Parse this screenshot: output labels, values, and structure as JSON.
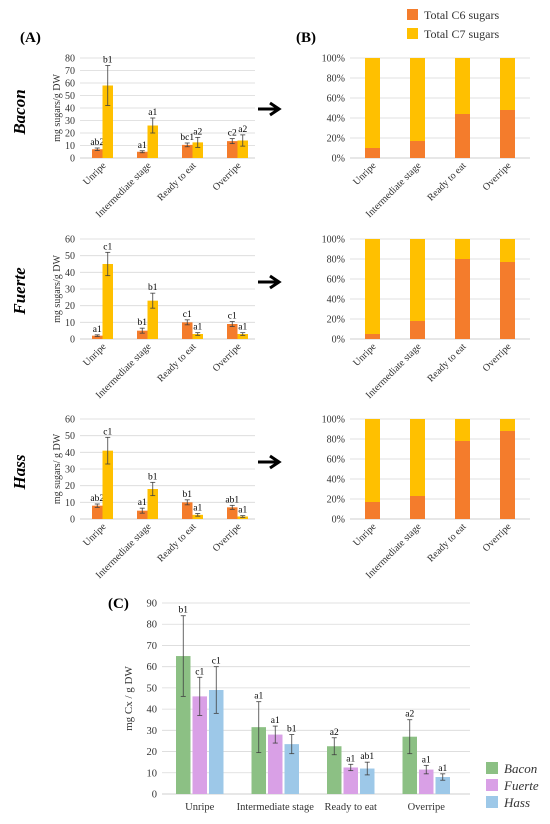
{
  "colors": {
    "c6": "#F47C2C",
    "c7": "#FFC000",
    "bacon": "#8CC084",
    "fuerte": "#D9A0E6",
    "hass": "#9DC8E8",
    "grid": "#D9D9D9",
    "axis": "#BFBFBF",
    "text": "#333333"
  },
  "panel_labels": [
    "(A)",
    "(B)",
    "(C)"
  ],
  "legend_top": [
    {
      "label": "Total C6 sugars",
      "color_key": "c6"
    },
    {
      "label": "Total C7 sugars",
      "color_key": "c7"
    }
  ],
  "legend_bottom": [
    {
      "label": "Bacon",
      "color_key": "bacon"
    },
    {
      "label": "Fuerte",
      "color_key": "fuerte"
    },
    {
      "label": "Hass",
      "color_key": "hass"
    }
  ],
  "row_labels": [
    "Bacon",
    "Fuerte",
    "Hass"
  ],
  "arrow_icon": "right-arrow-icon",
  "chart_data": [
    {
      "id": "A-bacon",
      "type": "bar",
      "variety": "Bacon",
      "categories": [
        "Unripe",
        "Intermediate stage",
        "Ready to eat",
        "Overripe"
      ],
      "ylabel": "mg sugars/g DW",
      "ylim": [
        0,
        80
      ],
      "yticks": [
        0,
        10,
        20,
        30,
        40,
        50,
        60,
        70,
        80
      ],
      "series": [
        {
          "name": "Total C6 sugars",
          "values": [
            7,
            5,
            10.5,
            13.5
          ],
          "errors": [
            1,
            0.8,
            1.5,
            2
          ],
          "labels": [
            "ab2",
            "a1",
            "bc1",
            "c2"
          ]
        },
        {
          "name": "Total C7 sugars",
          "values": [
            58,
            26,
            12.5,
            14
          ],
          "errors": [
            16,
            6,
            4,
            4.5
          ],
          "labels": [
            "b1",
            "a1",
            "a2",
            "a2"
          ]
        }
      ]
    },
    {
      "id": "A-fuerte",
      "type": "bar",
      "variety": "Fuerte",
      "categories": [
        "Unripe",
        "Intermediate stage",
        "Ready to eat",
        "Overripe"
      ],
      "ylabel": "mg sugars/g DW",
      "ylim": [
        0,
        60
      ],
      "yticks": [
        0,
        10,
        20,
        30,
        40,
        50,
        60
      ],
      "series": [
        {
          "name": "Total C6 sugars",
          "values": [
            2,
            5,
            10,
            9
          ],
          "errors": [
            0.5,
            1.5,
            1.5,
            1.5
          ],
          "labels": [
            "a1",
            "b1",
            "c1",
            "c1"
          ]
        },
        {
          "name": "Total C7 sugars",
          "values": [
            45,
            23,
            3,
            3
          ],
          "errors": [
            7,
            4.5,
            0.8,
            0.8
          ],
          "labels": [
            "c1",
            "b1",
            "a1",
            "a1"
          ]
        }
      ]
    },
    {
      "id": "A-hass",
      "type": "bar",
      "variety": "Hass",
      "categories": [
        "Unripe",
        "Intermediate stage",
        "Ready to eat",
        "Overripe"
      ],
      "ylabel": "mg sugars/ g DW",
      "ylim": [
        0,
        60
      ],
      "yticks": [
        0,
        10,
        20,
        30,
        40,
        50,
        60
      ],
      "series": [
        {
          "name": "Total C6 sugars",
          "values": [
            8,
            5,
            10,
            7
          ],
          "errors": [
            1,
            1.5,
            1.5,
            1.2
          ],
          "labels": [
            "ab2",
            "a1",
            "b1",
            "ab1"
          ]
        },
        {
          "name": "Total C7 sugars",
          "values": [
            41,
            18,
            2.5,
            1.5
          ],
          "errors": [
            8,
            4,
            0.8,
            0.5
          ],
          "labels": [
            "c1",
            "b1",
            "a1",
            "a1"
          ]
        }
      ]
    },
    {
      "id": "B-bacon",
      "type": "bar",
      "stacked": "percent",
      "variety": "Bacon",
      "categories": [
        "Unripe",
        "Intermediate stage",
        "Ready to eat",
        "Overripe"
      ],
      "yticks": [
        "0%",
        "20%",
        "40%",
        "60%",
        "80%",
        "100%"
      ],
      "series": [
        {
          "name": "Total C6 sugars",
          "values": [
            10,
            17,
            44,
            48
          ]
        },
        {
          "name": "Total C7 sugars",
          "values": [
            90,
            83,
            56,
            52
          ]
        }
      ]
    },
    {
      "id": "B-fuerte",
      "type": "bar",
      "stacked": "percent",
      "variety": "Fuerte",
      "categories": [
        "Unripe",
        "Intermediate stage",
        "Ready to eat",
        "Overripe"
      ],
      "yticks": [
        "0%",
        "20%",
        "40%",
        "60%",
        "80%",
        "100%"
      ],
      "series": [
        {
          "name": "Total C6 sugars",
          "values": [
            5,
            18,
            80,
            77
          ]
        },
        {
          "name": "Total C7 sugars",
          "values": [
            95,
            82,
            20,
            23
          ]
        }
      ]
    },
    {
      "id": "B-hass",
      "type": "bar",
      "stacked": "percent",
      "variety": "Hass",
      "categories": [
        "Unripe",
        "Intermediate stage",
        "Ready to eat",
        "Overripe"
      ],
      "yticks": [
        "0%",
        "20%",
        "40%",
        "60%",
        "80%",
        "100%"
      ],
      "series": [
        {
          "name": "Total C6 sugars",
          "values": [
            17,
            23,
            78,
            88
          ]
        },
        {
          "name": "Total C7 sugars",
          "values": [
            83,
            77,
            22,
            12
          ]
        }
      ]
    },
    {
      "id": "C",
      "type": "bar",
      "categories": [
        "Unripe",
        "Intermediate stage",
        "Ready to eat",
        "Overripe"
      ],
      "ylabel": "mg Cx / g DW",
      "ylim": [
        0,
        90
      ],
      "yticks": [
        0,
        10,
        20,
        30,
        40,
        50,
        60,
        70,
        80,
        90
      ],
      "series": [
        {
          "name": "Bacon",
          "values": [
            65,
            31.5,
            22.5,
            27
          ],
          "errors": [
            19,
            12,
            4,
            8
          ],
          "labels": [
            "b1",
            "a1",
            "a2",
            "a2"
          ]
        },
        {
          "name": "Fuerte",
          "values": [
            46,
            28,
            12.5,
            11.5
          ],
          "errors": [
            9,
            4,
            1.5,
            2
          ],
          "labels": [
            "c1",
            "a1",
            "a1",
            "a1"
          ]
        },
        {
          "name": "Hass",
          "values": [
            49,
            23.5,
            12,
            8
          ],
          "errors": [
            11,
            4.5,
            3,
            1.5
          ],
          "labels": [
            "c1",
            "b1",
            "ab1",
            "a1"
          ]
        }
      ]
    }
  ]
}
